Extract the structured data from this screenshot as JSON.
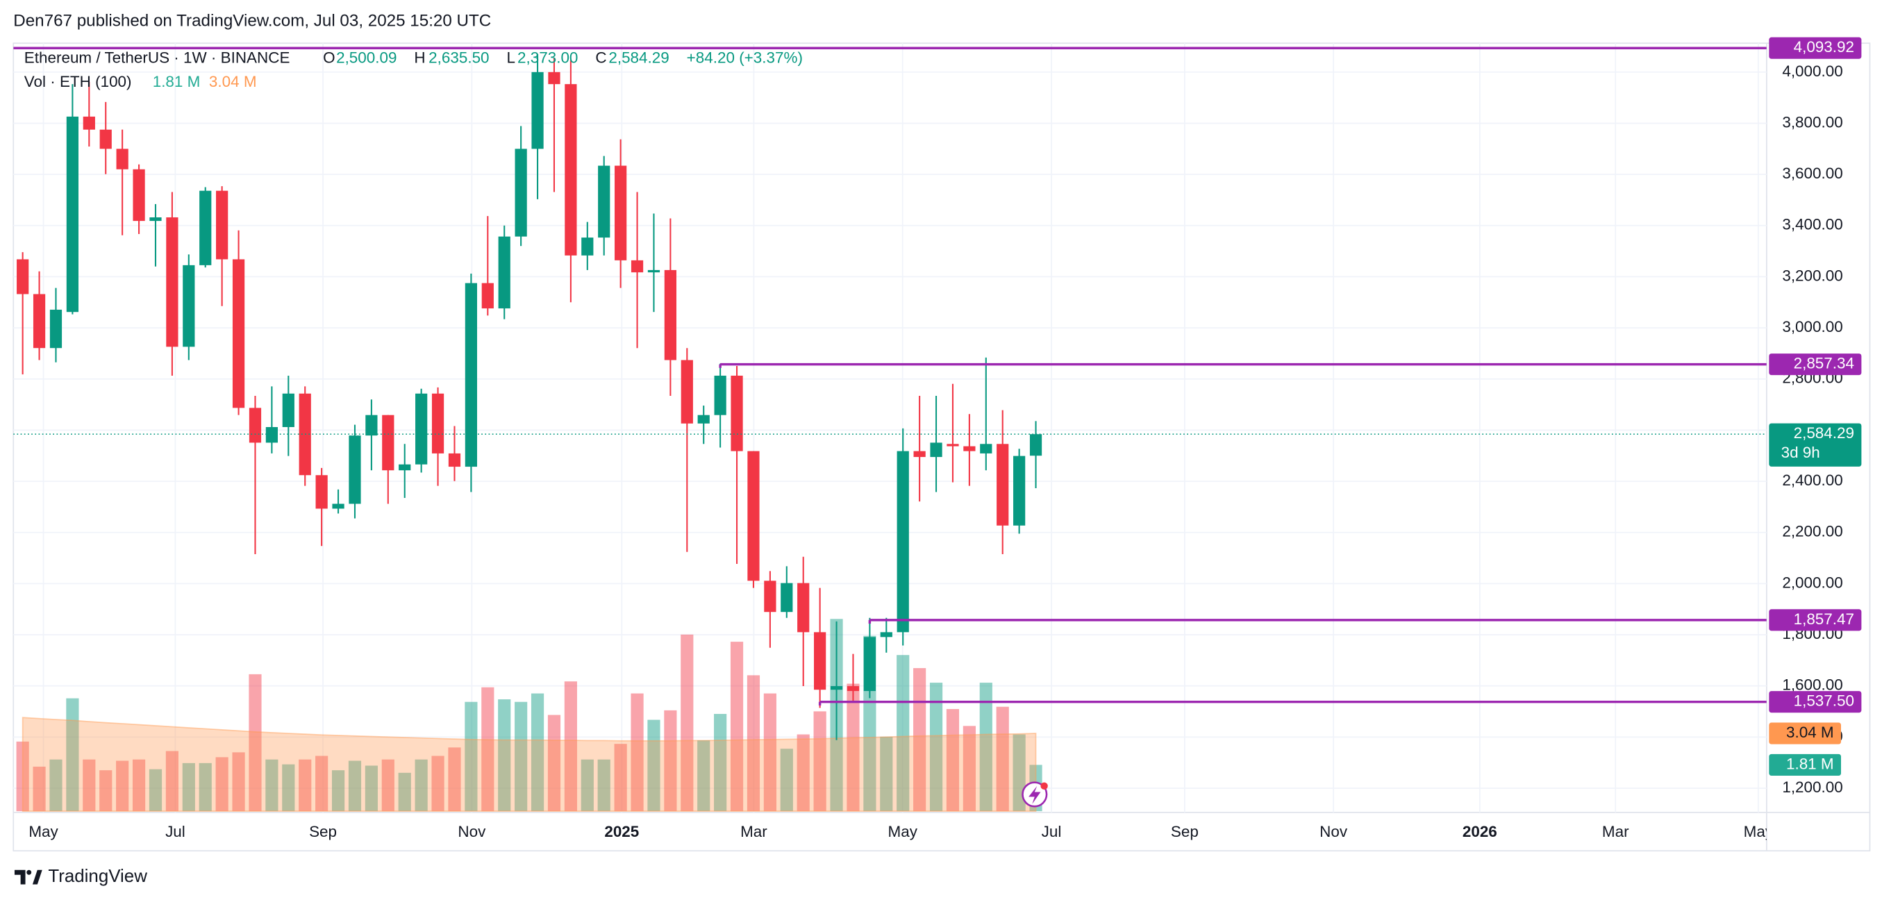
{
  "header": {
    "publisher": "Den767 published on TradingView.com, Jul 03, 2025 15:20 UTC"
  },
  "footer": {
    "brand": "TradingView"
  },
  "chart_data": {
    "type": "candlestick",
    "legend": {
      "symbol": "Ethereum / TetherUS · 1W · BINANCE",
      "fields": [
        {
          "key": "O",
          "label": "2,500.09"
        },
        {
          "key": "H",
          "label": "2,635.50"
        },
        {
          "key": "L",
          "label": "2,373.00"
        },
        {
          "key": "C",
          "label": "2,584.29"
        }
      ],
      "change": "+84.20 (+3.37%)",
      "volume_title": "Vol · ETH (100)"
    },
    "categories": [
      null,
      null,
      null,
      null,
      null,
      null,
      null,
      null,
      null,
      null,
      null,
      null,
      null,
      null,
      null,
      null,
      null,
      null,
      null,
      null,
      null,
      null,
      null,
      null,
      null,
      null,
      null,
      null,
      null,
      null,
      null,
      null,
      null,
      null,
      null,
      null,
      null,
      null,
      null,
      null,
      null,
      null,
      null,
      null,
      null,
      null,
      null,
      null,
      null,
      null,
      null,
      null,
      null,
      null,
      null,
      null,
      null,
      null,
      null,
      null,
      null,
      null
    ],
    "open": [
      3268,
      3132,
      2921,
      3062,
      3826,
      3775,
      3700,
      3620,
      3418,
      3432,
      2926,
      3245,
      3536,
      3268,
      2687,
      2551,
      2612,
      2743,
      2424,
      2293,
      2312,
      2579,
      2659,
      2443,
      2466,
      2743,
      2509,
      2457,
      3175,
      3076,
      3357,
      3700,
      4000,
      3953,
      3283,
      3353,
      3634,
      3264,
      3217,
      3226,
      2874,
      2626,
      2659,
      2813,
      2518,
      2011,
      1889,
      2002,
      1810,
      1585,
      1599,
      1580,
      1791,
      1810,
      2518,
      2495,
      2546,
      2537,
      2509,
      2546,
      2227,
      2500.09
    ],
    "high": [
      3296,
      3221,
      3156,
      3953,
      3962,
      3883,
      3775,
      3639,
      3484,
      3531,
      3287,
      3550,
      3554,
      3381,
      2734,
      2771,
      2813,
      2771,
      2452,
      2368,
      2621,
      2720,
      2659,
      2546,
      2762,
      2767,
      2616,
      3212,
      3437,
      3400,
      3789,
      4070,
      4056,
      4047,
      3414,
      3672,
      3737,
      3531,
      3447,
      3428,
      2921,
      2696,
      2860,
      2851,
      2518,
      2049,
      2068,
      2105,
      1983,
      1852,
      1725,
      1866,
      1866,
      2607,
      2734,
      2734,
      2781,
      2663,
      2884,
      2678,
      2527,
      2635.5
    ],
    "low": [
      2818,
      2874,
      2865,
      3053,
      3709,
      3601,
      3362,
      3367,
      3240,
      2813,
      2874,
      3236,
      3085,
      2659,
      2115,
      2509,
      2499,
      2382,
      2147,
      2274,
      2255,
      2443,
      2312,
      2335,
      2434,
      2382,
      2401,
      2358,
      3048,
      3034,
      3320,
      3503,
      3531,
      3100,
      3226,
      3283,
      3156,
      2921,
      3062,
      2734,
      2124,
      2546,
      2532,
      2077,
      1983,
      1749,
      1866,
      1599,
      1514,
      1388,
      1538,
      1552,
      1730,
      1758,
      2321,
      2358,
      2396,
      2382,
      2443,
      2115,
      2195,
      2373
    ],
    "close": [
      3132,
      2921,
      3071,
      3826,
      3775,
      3700,
      3620,
      3418,
      3432,
      2926,
      3245,
      3536,
      3268,
      2687,
      2551,
      2612,
      2743,
      2424,
      2293,
      2312,
      2579,
      2659,
      2443,
      2466,
      2743,
      2509,
      2457,
      3175,
      3076,
      3357,
      3700,
      4000,
      3953,
      3283,
      3353,
      3634,
      3264,
      3217,
      3226,
      2874,
      2626,
      2659,
      2813,
      2518,
      2011,
      1889,
      2002,
      1810,
      1585,
      1599,
      1580,
      1791,
      1810,
      2518,
      2495,
      2551,
      2537,
      2518,
      2546,
      2227,
      2499,
      2584.29
    ],
    "up_color": "#089981",
    "down_color": "#f23645",
    "volume": {
      "values": [
        2.72,
        1.74,
        2.02,
        4.41,
        2.02,
        1.6,
        1.97,
        2.02,
        1.64,
        2.35,
        1.88,
        1.88,
        2.11,
        2.3,
        5.35,
        2.02,
        1.83,
        2.02,
        2.16,
        1.6,
        1.97,
        1.78,
        2.02,
        1.5,
        2.02,
        2.16,
        2.49,
        4.27,
        4.84,
        4.37,
        4.27,
        4.6,
        3.76,
        5.07,
        2.02,
        2.02,
        2.63,
        4.6,
        3.57,
        3.94,
        6.9,
        2.77,
        3.8,
        6.62,
        5.31,
        4.6,
        2.44,
        3.0,
        3.9,
        7.51,
        4.98,
        6.85,
        2.91,
        6.1,
        5.59,
        5.02,
        3.99,
        3.33,
        5.02,
        4.08,
        3.0,
        1.81
      ],
      "ma": [
        3.66,
        3.62,
        3.58,
        3.55,
        3.5,
        3.46,
        3.42,
        3.38,
        3.34,
        3.3,
        3.26,
        3.22,
        3.18,
        3.14,
        3.1,
        3.07,
        3.04,
        3.01,
        2.98,
        2.96,
        2.94,
        2.92,
        2.9,
        2.88,
        2.86,
        2.84,
        2.82,
        2.8,
        2.79,
        2.78,
        2.78,
        2.78,
        2.77,
        2.77,
        2.76,
        2.76,
        2.75,
        2.75,
        2.75,
        2.75,
        2.76,
        2.76,
        2.77,
        2.78,
        2.79,
        2.8,
        2.81,
        2.82,
        2.83,
        2.85,
        2.87,
        2.88,
        2.9,
        2.92,
        2.94,
        2.95,
        2.97,
        2.98,
        3.0,
        3.01,
        3.02,
        3.04
      ],
      "last_label": "1.81 M",
      "ma_last_label": "3.04 M",
      "ylim": [
        0,
        30
      ],
      "ma_color": "#ff9850"
    },
    "xlim": [
      -0.56,
      105.0
    ],
    "xticks": [
      {
        "value": 1.25,
        "label": "May"
      },
      {
        "value": 9.19,
        "label": "Jul"
      },
      {
        "value": 18.08,
        "label": "Sep"
      },
      {
        "value": 27.04,
        "label": "Nov"
      },
      {
        "value": 36.07,
        "label": "2025"
      },
      {
        "value": 44.02,
        "label": "Mar"
      },
      {
        "value": 52.98,
        "label": "May"
      },
      {
        "value": 61.94,
        "label": "Jul"
      },
      {
        "value": 69.96,
        "label": "Sep"
      },
      {
        "value": 78.92,
        "label": "Nov"
      },
      {
        "value": 87.73,
        "label": "2026"
      },
      {
        "value": 95.9,
        "label": "Mar"
      },
      {
        "value": 104.5,
        "label": "May"
      }
    ],
    "ylim": [
      1110,
      4113
    ],
    "yticks": [
      {
        "value": 1200,
        "label": "1,200.00"
      },
      {
        "value": 1400,
        "label": "1,400.00"
      },
      {
        "value": 1600,
        "label": "1,600.00"
      },
      {
        "value": 1800,
        "label": "1,800.00"
      },
      {
        "value": 2000,
        "label": "2,000.00"
      },
      {
        "value": 2200,
        "label": "2,200.00"
      },
      {
        "value": 2400,
        "label": "2,400.00"
      },
      {
        "value": 2600,
        "label": "2,600.00"
      },
      {
        "value": 2800,
        "label": "2,800.00"
      },
      {
        "value": 3000,
        "label": "3,000.00"
      },
      {
        "value": 3200,
        "label": "3,200.00"
      },
      {
        "value": 3400,
        "label": "3,400.00"
      },
      {
        "value": 3600,
        "label": "3,600.00"
      },
      {
        "value": 3800,
        "label": "3,800.00"
      },
      {
        "value": 4000,
        "label": "4,000.00"
      }
    ],
    "grid": true,
    "levels": [
      {
        "value": 4093.92,
        "label": "4,093.92"
      },
      {
        "value": 2857.34,
        "label": "2,857.34",
        "from": 42
      },
      {
        "value": 1857.47,
        "label": "1,857.47",
        "from": 51
      },
      {
        "value": 1537.5,
        "label": "1,537.50",
        "from": 48
      }
    ],
    "level_color": "#9c27b0",
    "price_line": {
      "value": 2584.29,
      "label": "2,584.29",
      "countdown": "3d 9h"
    }
  }
}
